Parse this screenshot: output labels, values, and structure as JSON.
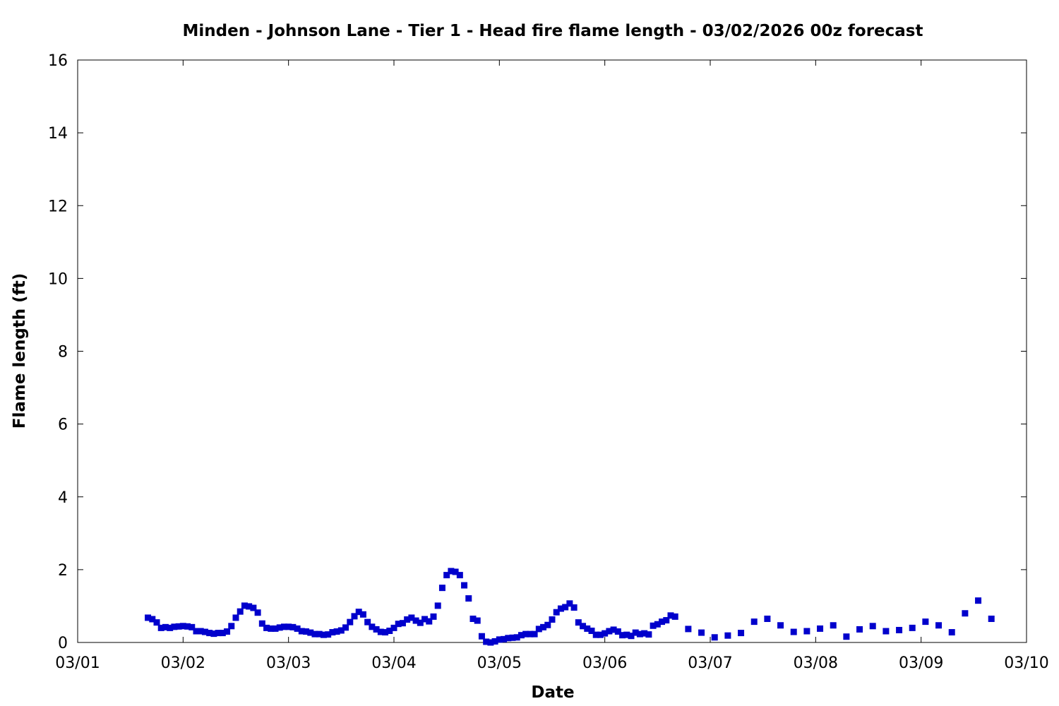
{
  "chart_data": {
    "type": "scatter",
    "title": "Minden - Johnson Lane - Tier 1 - Head fire flame length - 03/02/2026 00z forecast",
    "xlabel": "Date",
    "ylabel": "Flame length (ft)",
    "xlim": [
      "2026-03-01T00:00",
      "2026-03-10T00:00"
    ],
    "ylim": [
      0,
      16
    ],
    "x_ticks": [
      "03/01",
      "03/02",
      "03/03",
      "03/04",
      "03/05",
      "03/06",
      "03/07",
      "03/08",
      "03/09",
      "03/10"
    ],
    "y_ticks": [
      0,
      2,
      4,
      6,
      8,
      10,
      12,
      14,
      16
    ],
    "grid": false,
    "legend": "none",
    "marker": "square",
    "color": "#0000cc",
    "series": [
      {
        "points": [
          [
            "2026-03-01T16:00",
            0.68
          ],
          [
            "2026-03-01T17:00",
            0.64
          ],
          [
            "2026-03-01T18:00",
            0.55
          ],
          [
            "2026-03-01T19:00",
            0.4
          ],
          [
            "2026-03-01T20:00",
            0.42
          ],
          [
            "2026-03-01T21:00",
            0.4
          ],
          [
            "2026-03-01T22:00",
            0.43
          ],
          [
            "2026-03-01T23:00",
            0.44
          ],
          [
            "2026-03-02T00:00",
            0.45
          ],
          [
            "2026-03-02T01:00",
            0.44
          ],
          [
            "2026-03-02T02:00",
            0.42
          ],
          [
            "2026-03-02T03:00",
            0.31
          ],
          [
            "2026-03-02T04:00",
            0.31
          ],
          [
            "2026-03-02T05:00",
            0.29
          ],
          [
            "2026-03-02T06:00",
            0.26
          ],
          [
            "2026-03-02T07:00",
            0.24
          ],
          [
            "2026-03-02T08:00",
            0.26
          ],
          [
            "2026-03-02T09:00",
            0.26
          ],
          [
            "2026-03-02T10:00",
            0.3
          ],
          [
            "2026-03-02T11:00",
            0.45
          ],
          [
            "2026-03-02T12:00",
            0.68
          ],
          [
            "2026-03-02T13:00",
            0.85
          ],
          [
            "2026-03-02T14:00",
            1.01
          ],
          [
            "2026-03-02T15:00",
            0.99
          ],
          [
            "2026-03-02T16:00",
            0.95
          ],
          [
            "2026-03-02T17:00",
            0.82
          ],
          [
            "2026-03-02T18:00",
            0.52
          ],
          [
            "2026-03-02T19:00",
            0.4
          ],
          [
            "2026-03-02T20:00",
            0.38
          ],
          [
            "2026-03-02T21:00",
            0.38
          ],
          [
            "2026-03-02T22:00",
            0.41
          ],
          [
            "2026-03-02T23:00",
            0.43
          ],
          [
            "2026-03-03T00:00",
            0.43
          ],
          [
            "2026-03-03T01:00",
            0.42
          ],
          [
            "2026-03-03T02:00",
            0.38
          ],
          [
            "2026-03-03T03:00",
            0.31
          ],
          [
            "2026-03-03T04:00",
            0.3
          ],
          [
            "2026-03-03T05:00",
            0.27
          ],
          [
            "2026-03-03T06:00",
            0.23
          ],
          [
            "2026-03-03T07:00",
            0.23
          ],
          [
            "2026-03-03T08:00",
            0.21
          ],
          [
            "2026-03-03T09:00",
            0.22
          ],
          [
            "2026-03-03T10:00",
            0.28
          ],
          [
            "2026-03-03T11:00",
            0.3
          ],
          [
            "2026-03-03T12:00",
            0.33
          ],
          [
            "2026-03-03T13:00",
            0.41
          ],
          [
            "2026-03-03T14:00",
            0.56
          ],
          [
            "2026-03-03T15:00",
            0.72
          ],
          [
            "2026-03-03T16:00",
            0.84
          ],
          [
            "2026-03-03T17:00",
            0.77
          ],
          [
            "2026-03-03T18:00",
            0.56
          ],
          [
            "2026-03-03T19:00",
            0.43
          ],
          [
            "2026-03-03T20:00",
            0.36
          ],
          [
            "2026-03-03T21:00",
            0.29
          ],
          [
            "2026-03-03T22:00",
            0.28
          ],
          [
            "2026-03-03T23:00",
            0.32
          ],
          [
            "2026-03-04T00:00",
            0.4
          ],
          [
            "2026-03-04T01:00",
            0.51
          ],
          [
            "2026-03-04T02:00",
            0.53
          ],
          [
            "2026-03-04T03:00",
            0.63
          ],
          [
            "2026-03-04T04:00",
            0.68
          ],
          [
            "2026-03-04T05:00",
            0.6
          ],
          [
            "2026-03-04T06:00",
            0.54
          ],
          [
            "2026-03-04T07:00",
            0.64
          ],
          [
            "2026-03-04T08:00",
            0.58
          ],
          [
            "2026-03-04T09:00",
            0.71
          ],
          [
            "2026-03-04T10:00",
            1.01
          ],
          [
            "2026-03-04T11:00",
            1.5
          ],
          [
            "2026-03-04T12:00",
            1.85
          ],
          [
            "2026-03-04T13:00",
            1.96
          ],
          [
            "2026-03-04T14:00",
            1.94
          ],
          [
            "2026-03-04T15:00",
            1.85
          ],
          [
            "2026-03-04T16:00",
            1.57
          ],
          [
            "2026-03-04T17:00",
            1.21
          ],
          [
            "2026-03-04T18:00",
            0.65
          ],
          [
            "2026-03-04T19:00",
            0.6
          ],
          [
            "2026-03-04T20:00",
            0.17
          ],
          [
            "2026-03-04T21:00",
            0.02
          ],
          [
            "2026-03-04T22:00",
            0.0
          ],
          [
            "2026-03-04T23:00",
            0.03
          ],
          [
            "2026-03-05T00:00",
            0.08
          ],
          [
            "2026-03-05T01:00",
            0.09
          ],
          [
            "2026-03-05T02:00",
            0.12
          ],
          [
            "2026-03-05T03:00",
            0.13
          ],
          [
            "2026-03-05T04:00",
            0.14
          ],
          [
            "2026-03-05T05:00",
            0.2
          ],
          [
            "2026-03-05T06:00",
            0.23
          ],
          [
            "2026-03-05T07:00",
            0.23
          ],
          [
            "2026-03-05T08:00",
            0.23
          ],
          [
            "2026-03-05T09:00",
            0.37
          ],
          [
            "2026-03-05T10:00",
            0.42
          ],
          [
            "2026-03-05T11:00",
            0.48
          ],
          [
            "2026-03-05T12:00",
            0.63
          ],
          [
            "2026-03-05T13:00",
            0.83
          ],
          [
            "2026-03-05T14:00",
            0.93
          ],
          [
            "2026-03-05T15:00",
            0.97
          ],
          [
            "2026-03-05T16:00",
            1.07
          ],
          [
            "2026-03-05T17:00",
            0.96
          ],
          [
            "2026-03-05T18:00",
            0.55
          ],
          [
            "2026-03-05T19:00",
            0.45
          ],
          [
            "2026-03-05T20:00",
            0.38
          ],
          [
            "2026-03-05T21:00",
            0.32
          ],
          [
            "2026-03-05T22:00",
            0.21
          ],
          [
            "2026-03-05T23:00",
            0.21
          ],
          [
            "2026-03-06T00:00",
            0.25
          ],
          [
            "2026-03-06T01:00",
            0.31
          ],
          [
            "2026-03-06T02:00",
            0.35
          ],
          [
            "2026-03-06T03:00",
            0.3
          ],
          [
            "2026-03-06T04:00",
            0.2
          ],
          [
            "2026-03-06T05:00",
            0.21
          ],
          [
            "2026-03-06T06:00",
            0.18
          ],
          [
            "2026-03-06T07:00",
            0.27
          ],
          [
            "2026-03-06T08:00",
            0.23
          ],
          [
            "2026-03-06T09:00",
            0.25
          ],
          [
            "2026-03-06T10:00",
            0.22
          ],
          [
            "2026-03-06T11:00",
            0.46
          ],
          [
            "2026-03-06T12:00",
            0.5
          ],
          [
            "2026-03-06T13:00",
            0.57
          ],
          [
            "2026-03-06T14:00",
            0.61
          ],
          [
            "2026-03-06T15:00",
            0.74
          ],
          [
            "2026-03-06T16:00",
            0.71
          ],
          [
            "2026-03-06T19:00",
            0.37
          ],
          [
            "2026-03-06T22:00",
            0.27
          ],
          [
            "2026-03-07T01:00",
            0.14
          ],
          [
            "2026-03-07T04:00",
            0.19
          ],
          [
            "2026-03-07T07:00",
            0.26
          ],
          [
            "2026-03-07T10:00",
            0.57
          ],
          [
            "2026-03-07T13:00",
            0.65
          ],
          [
            "2026-03-07T16:00",
            0.47
          ],
          [
            "2026-03-07T19:00",
            0.29
          ],
          [
            "2026-03-07T22:00",
            0.31
          ],
          [
            "2026-03-08T01:00",
            0.38
          ],
          [
            "2026-03-08T04:00",
            0.47
          ],
          [
            "2026-03-08T07:00",
            0.16
          ],
          [
            "2026-03-08T10:00",
            0.36
          ],
          [
            "2026-03-08T13:00",
            0.45
          ],
          [
            "2026-03-08T16:00",
            0.31
          ],
          [
            "2026-03-08T19:00",
            0.34
          ],
          [
            "2026-03-08T22:00",
            0.4
          ],
          [
            "2026-03-09T01:00",
            0.57
          ],
          [
            "2026-03-09T04:00",
            0.47
          ],
          [
            "2026-03-09T07:00",
            0.28
          ],
          [
            "2026-03-09T10:00",
            0.8
          ],
          [
            "2026-03-09T13:00",
            1.15
          ],
          [
            "2026-03-09T16:00",
            0.65
          ]
        ]
      }
    ]
  }
}
